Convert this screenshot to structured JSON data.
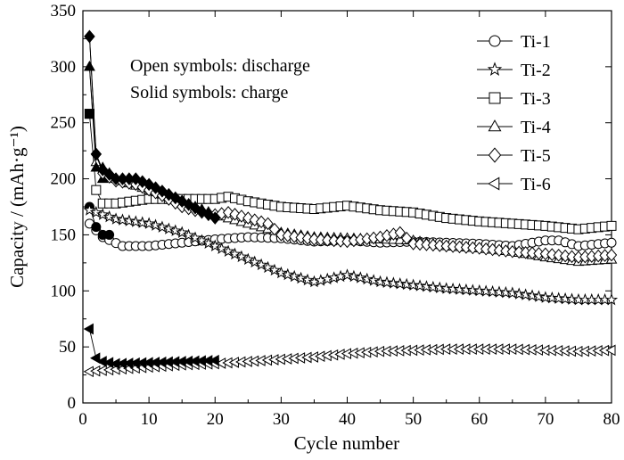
{
  "chart_data": {
    "type": "scatter",
    "xlabel": "Cycle number",
    "ylabel": "Capacity / (mAh·g⁻¹)",
    "xlim": [
      0,
      80
    ],
    "ylim": [
      0,
      350
    ],
    "xticks": [
      0,
      10,
      20,
      30,
      40,
      50,
      60,
      70,
      80
    ],
    "yticks": [
      0,
      50,
      100,
      150,
      200,
      250,
      300,
      350
    ],
    "grid": false,
    "legend_placement": "top-right",
    "annotations": [
      "Open symbols: discharge",
      "Solid symbols: charge"
    ],
    "series": [
      {
        "name": "Ti-1",
        "marker": "circle",
        "discharge": [
          [
            1,
            160
          ],
          [
            3,
            148
          ],
          [
            6,
            140
          ],
          [
            10,
            140
          ],
          [
            15,
            143
          ],
          [
            20,
            146
          ],
          [
            25,
            148
          ],
          [
            30,
            147
          ],
          [
            35,
            144
          ],
          [
            40,
            145
          ],
          [
            45,
            143
          ],
          [
            50,
            144
          ],
          [
            55,
            143
          ],
          [
            60,
            142
          ],
          [
            65,
            140
          ],
          [
            70,
            145
          ],
          [
            72,
            145
          ],
          [
            75,
            140
          ],
          [
            80,
            143
          ]
        ],
        "charge": [
          [
            1,
            175
          ],
          [
            2,
            157
          ],
          [
            3,
            150
          ],
          [
            4,
            150
          ]
        ]
      },
      {
        "name": "Ti-2",
        "marker": "star",
        "discharge": [
          [
            1,
            172
          ],
          [
            5,
            164
          ],
          [
            10,
            160
          ],
          [
            15,
            152
          ],
          [
            20,
            140
          ],
          [
            25,
            128
          ],
          [
            30,
            116
          ],
          [
            35,
            108
          ],
          [
            40,
            114
          ],
          [
            45,
            108
          ],
          [
            50,
            105
          ],
          [
            55,
            102
          ],
          [
            60,
            100
          ],
          [
            65,
            98
          ],
          [
            70,
            94
          ],
          [
            75,
            92
          ],
          [
            80,
            92
          ]
        ],
        "charge": []
      },
      {
        "name": "Ti-3",
        "marker": "square",
        "discharge": [
          [
            1,
            258
          ],
          [
            2,
            190
          ],
          [
            3,
            178
          ],
          [
            5,
            178
          ],
          [
            10,
            182
          ],
          [
            15,
            182
          ],
          [
            20,
            182
          ],
          [
            22,
            184
          ],
          [
            25,
            180
          ],
          [
            30,
            175
          ],
          [
            35,
            173
          ],
          [
            40,
            176
          ],
          [
            45,
            172
          ],
          [
            50,
            170
          ],
          [
            55,
            165
          ],
          [
            60,
            162
          ],
          [
            65,
            160
          ],
          [
            70,
            158
          ],
          [
            75,
            155
          ],
          [
            80,
            158
          ]
        ],
        "charge": [
          [
            1,
            258
          ]
        ]
      },
      {
        "name": "Ti-4",
        "marker": "triangle-up",
        "discharge": [
          [
            1,
            300
          ],
          [
            2,
            215
          ],
          [
            5,
            200
          ],
          [
            10,
            190
          ],
          [
            15,
            180
          ],
          [
            20,
            168
          ],
          [
            25,
            160
          ],
          [
            30,
            152
          ],
          [
            35,
            148
          ],
          [
            40,
            147
          ],
          [
            45,
            146
          ],
          [
            50,
            145
          ],
          [
            55,
            140
          ],
          [
            60,
            138
          ],
          [
            65,
            135
          ],
          [
            70,
            130
          ],
          [
            75,
            126
          ],
          [
            80,
            128
          ]
        ],
        "charge": [
          [
            1,
            300
          ],
          [
            2,
            210
          ],
          [
            3,
            200
          ]
        ]
      },
      {
        "name": "Ti-5",
        "marker": "diamond",
        "discharge": [
          [
            1,
            327
          ],
          [
            2,
            222
          ],
          [
            3,
            205
          ],
          [
            5,
            198
          ],
          [
            8,
            195
          ],
          [
            10,
            190
          ],
          [
            12,
            185
          ],
          [
            15,
            175
          ],
          [
            18,
            170
          ],
          [
            20,
            168
          ],
          [
            22,
            170
          ],
          [
            25,
            165
          ],
          [
            28,
            160
          ],
          [
            30,
            150
          ],
          [
            35,
            146
          ],
          [
            40,
            144
          ],
          [
            45,
            148
          ],
          [
            48,
            152
          ],
          [
            50,
            142
          ],
          [
            55,
            140
          ],
          [
            60,
            138
          ],
          [
            65,
            135
          ],
          [
            70,
            133
          ],
          [
            75,
            130
          ],
          [
            80,
            132
          ]
        ],
        "charge": [
          [
            1,
            327
          ],
          [
            2,
            222
          ],
          [
            3,
            208
          ],
          [
            5,
            200
          ],
          [
            8,
            200
          ],
          [
            10,
            195
          ],
          [
            15,
            180
          ],
          [
            20,
            165
          ]
        ]
      },
      {
        "name": "Ti-6",
        "marker": "triangle-left",
        "discharge": [
          [
            1,
            28
          ],
          [
            5,
            30
          ],
          [
            10,
            32
          ],
          [
            15,
            34
          ],
          [
            20,
            35
          ],
          [
            25,
            37
          ],
          [
            30,
            39
          ],
          [
            35,
            41
          ],
          [
            40,
            44
          ],
          [
            45,
            46
          ],
          [
            50,
            47
          ],
          [
            55,
            48
          ],
          [
            60,
            48
          ],
          [
            65,
            48
          ],
          [
            70,
            47
          ],
          [
            75,
            46
          ],
          [
            80,
            47
          ]
        ],
        "charge": [
          [
            1,
            66
          ],
          [
            2,
            40
          ],
          [
            3,
            37
          ],
          [
            5,
            35
          ],
          [
            10,
            36
          ],
          [
            15,
            37
          ],
          [
            20,
            38
          ]
        ]
      }
    ]
  }
}
